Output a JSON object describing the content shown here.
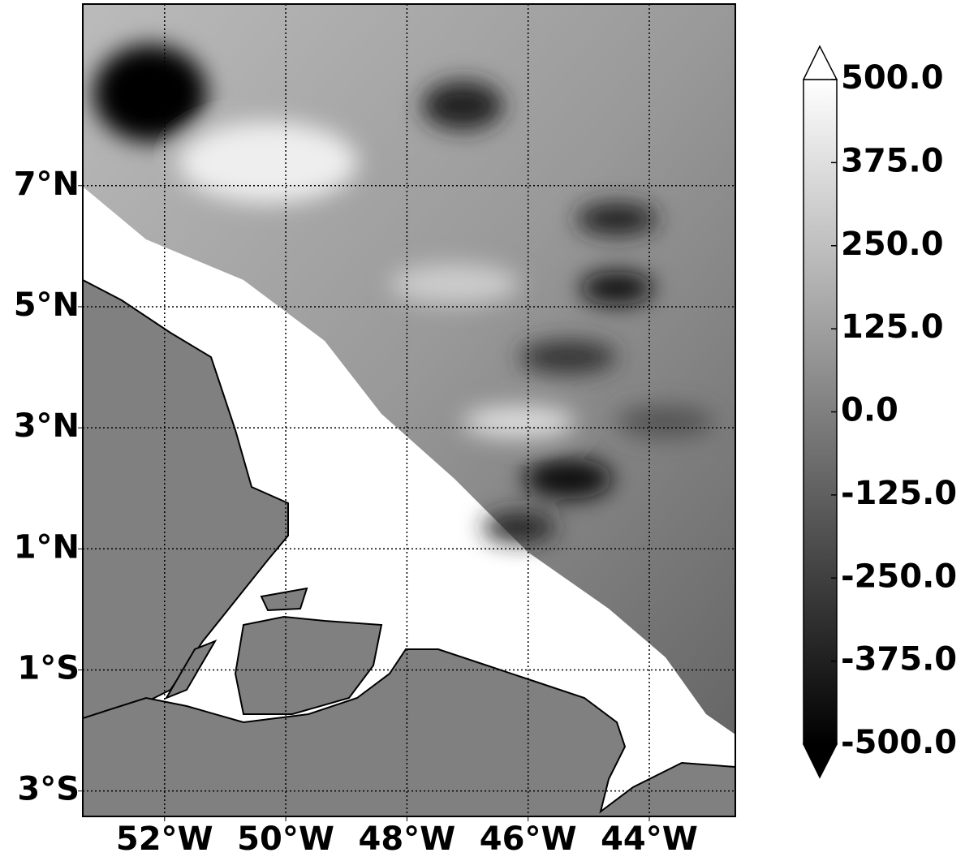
{
  "chart_data": {
    "type": "map",
    "xlim": [
      -53.35,
      -42.58
    ],
    "ylim": [
      -3.42,
      10.0
    ],
    "xticks": [
      {
        "value": -52,
        "label": "52°W"
      },
      {
        "value": -50,
        "label": "50°W"
      },
      {
        "value": -48,
        "label": "48°W"
      },
      {
        "value": -46,
        "label": "46°W"
      },
      {
        "value": -44,
        "label": "44°W"
      }
    ],
    "yticks": [
      {
        "value": 7,
        "label": "7°N"
      },
      {
        "value": 5,
        "label": "5°N"
      },
      {
        "value": 3,
        "label": "3°N"
      },
      {
        "value": 1,
        "label": "1°N"
      },
      {
        "value": -1,
        "label": "1°S"
      },
      {
        "value": -3,
        "label": "3°S"
      }
    ],
    "grid": true,
    "colorbar": {
      "lim": [
        -500,
        500
      ],
      "extend": "both",
      "ticks": [
        {
          "value": 500,
          "label": "500.0"
        },
        {
          "value": 375,
          "label": "375.0"
        },
        {
          "value": 250,
          "label": "250.0"
        },
        {
          "value": 125,
          "label": "125.0"
        },
        {
          "value": 0,
          "label": "0.0"
        },
        {
          "value": -125,
          "label": "-125.0"
        },
        {
          "value": -250,
          "label": "-250.0"
        },
        {
          "value": -375,
          "label": "-375.0"
        },
        {
          "value": -500,
          "label": "-500.0"
        }
      ]
    }
  }
}
